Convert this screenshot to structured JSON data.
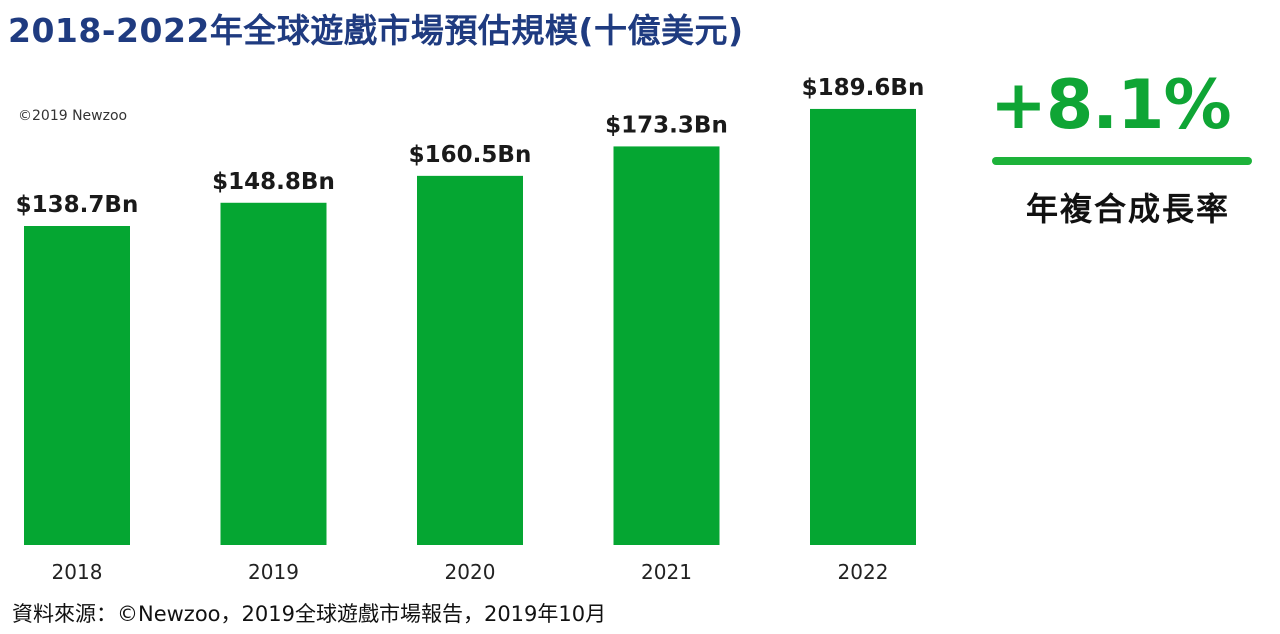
{
  "title": "2018-2022年全球遊戲市場預估規模(十億美元)",
  "copyright": "©2019 Newzoo",
  "cagr": {
    "value": "+8.1%",
    "label": "年複合成長率"
  },
  "source": "資料來源：©Newzoo，2019全球遊戲市場報告，2019年10月",
  "colors": {
    "bar": "#05a632",
    "title": "#1f3b80",
    "accent": "#1db23a"
  },
  "chart_data": {
    "type": "bar",
    "categories": [
      "2018",
      "2019",
      "2020",
      "2021",
      "2022"
    ],
    "values": [
      138.7,
      148.8,
      160.5,
      173.3,
      189.6
    ],
    "data_labels": [
      "$138.7Bn",
      "$148.8Bn",
      "$160.5Bn",
      "$173.3Bn",
      "$189.6Bn"
    ],
    "title": "2018-2022年全球遊戲市場預估規模(十億美元)",
    "xlabel": "",
    "ylabel": "",
    "grid": false,
    "legend": "none"
  }
}
